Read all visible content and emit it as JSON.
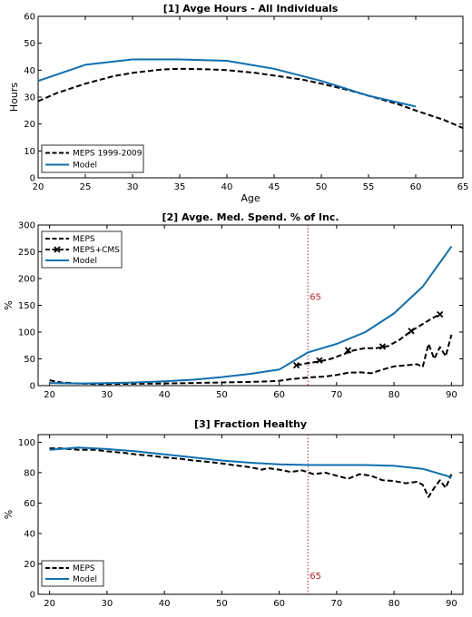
{
  "colors": {
    "meps": "#000000",
    "model": "#0e6fb0",
    "cms": "#000000",
    "age65_line": "#c0202a",
    "age65_label": "#c0202a"
  },
  "chart_data": [
    {
      "type": "line",
      "title": "[1] Avge Hours - All Individuals",
      "xlabel": "Age",
      "ylabel": "Hours",
      "xlim": [
        20,
        65
      ],
      "ylim": [
        0,
        60
      ],
      "xticks": [
        20,
        25,
        30,
        35,
        40,
        45,
        50,
        55,
        60,
        65
      ],
      "yticks": [
        0,
        10,
        20,
        30,
        40,
        50,
        60
      ],
      "legend_position": "bottom-left",
      "series": [
        {
          "name": "MEPS 1999-2009",
          "style": "dashed",
          "color_key": "meps",
          "x": [
            20,
            22,
            25,
            28,
            30,
            33,
            35,
            38,
            40,
            43,
            45,
            48,
            50,
            53,
            55,
            58,
            60,
            63,
            65
          ],
          "y": [
            28.5,
            31.5,
            35,
            37.8,
            39,
            40.2,
            40.5,
            40.3,
            40,
            39,
            38,
            36.5,
            35,
            32.5,
            30.5,
            27.5,
            25,
            21.5,
            18.5
          ]
        },
        {
          "name": "Model",
          "style": "solid",
          "color_key": "model",
          "x": [
            20,
            25,
            30,
            35,
            40,
            45,
            50,
            55,
            60
          ],
          "y": [
            36,
            42,
            44,
            44,
            43.5,
            40.5,
            36,
            30.5,
            26.5
          ]
        }
      ]
    },
    {
      "type": "line",
      "title": "[2] Avge. Med. Spend. % of Inc.",
      "xlabel": "",
      "ylabel": "%",
      "xlim": [
        18,
        92
      ],
      "ylim": [
        0,
        300
      ],
      "xticks": [
        20,
        30,
        40,
        50,
        60,
        70,
        80,
        90
      ],
      "yticks": [
        0,
        50,
        100,
        150,
        200,
        250,
        300
      ],
      "legend_position": "top-left",
      "vline": {
        "x": 65,
        "label": "65",
        "label_y": 160
      },
      "series": [
        {
          "name": "MEPS",
          "style": "dashed",
          "color_key": "meps",
          "x": [
            20,
            22,
            25,
            28,
            30,
            35,
            40,
            45,
            50,
            55,
            58,
            60,
            62,
            64,
            66,
            68,
            70,
            72,
            74,
            76,
            78,
            80,
            82,
            84,
            85,
            86,
            87,
            88,
            89,
            90
          ],
          "y": [
            10,
            6,
            4,
            3,
            3,
            3.5,
            4,
            5,
            6,
            7,
            8,
            9,
            12,
            14,
            16,
            17,
            20,
            24,
            25,
            23,
            30,
            36,
            38,
            40,
            35,
            78,
            50,
            72,
            55,
            95
          ]
        },
        {
          "name": "MEPS+CMS",
          "style": "dashed-marker",
          "color_key": "cms",
          "x": [
            63,
            65,
            67,
            69,
            71,
            73,
            75,
            77,
            79,
            81,
            83,
            85,
            87,
            88
          ],
          "y": [
            38,
            42,
            45,
            50,
            58,
            66,
            70,
            70,
            74,
            86,
            102,
            115,
            128,
            133
          ]
        },
        {
          "name": "Model",
          "style": "solid",
          "color_key": "model",
          "x": [
            20,
            25,
            30,
            35,
            40,
            45,
            50,
            55,
            60,
            65,
            70,
            75,
            80,
            85,
            90
          ],
          "y": [
            5,
            4,
            4.5,
            6,
            8,
            11,
            16,
            22,
            30,
            62,
            78,
            100,
            135,
            185,
            260
          ]
        }
      ],
      "markers": {
        "series": "MEPS+CMS",
        "x": [
          63,
          67,
          72,
          78,
          83,
          88
        ],
        "y": [
          38,
          47,
          66,
          73,
          102,
          133
        ]
      }
    },
    {
      "type": "line",
      "title": "[3] Fraction Healthy",
      "xlabel": "",
      "ylabel": "%",
      "xlim": [
        18,
        92
      ],
      "ylim": [
        0,
        105
      ],
      "xticks": [
        20,
        30,
        40,
        50,
        60,
        70,
        80,
        90
      ],
      "yticks": [
        0,
        20,
        40,
        60,
        80,
        100
      ],
      "legend_position": "bottom-left",
      "vline": {
        "x": 65,
        "label": "65",
        "label_y": 10
      },
      "series": [
        {
          "name": "MEPS",
          "style": "dashed",
          "color_key": "meps",
          "x": [
            20,
            22,
            25,
            28,
            30,
            33,
            35,
            38,
            40,
            43,
            45,
            48,
            50,
            53,
            55,
            57,
            58,
            60,
            62,
            64,
            66,
            68,
            70,
            72,
            74,
            76,
            78,
            80,
            82,
            84,
            85,
            86,
            87,
            88,
            89,
            90
          ],
          "y": [
            96,
            96,
            95,
            95,
            94,
            93,
            92,
            91,
            90,
            89,
            88,
            87,
            86,
            84.5,
            83.5,
            82,
            83,
            82,
            80.5,
            81.5,
            79,
            80,
            78,
            76,
            79,
            78,
            75,
            74.5,
            73,
            74,
            72,
            64,
            70,
            75,
            70,
            79
          ]
        },
        {
          "name": "Model",
          "style": "solid",
          "color_key": "model",
          "x": [
            20,
            25,
            30,
            35,
            40,
            45,
            50,
            55,
            60,
            65,
            70,
            75,
            80,
            85,
            90
          ],
          "y": [
            95,
            96.5,
            95.5,
            94,
            92,
            90,
            88,
            86.5,
            85.5,
            85,
            85,
            85,
            84.5,
            82.5,
            77
          ]
        }
      ]
    }
  ]
}
